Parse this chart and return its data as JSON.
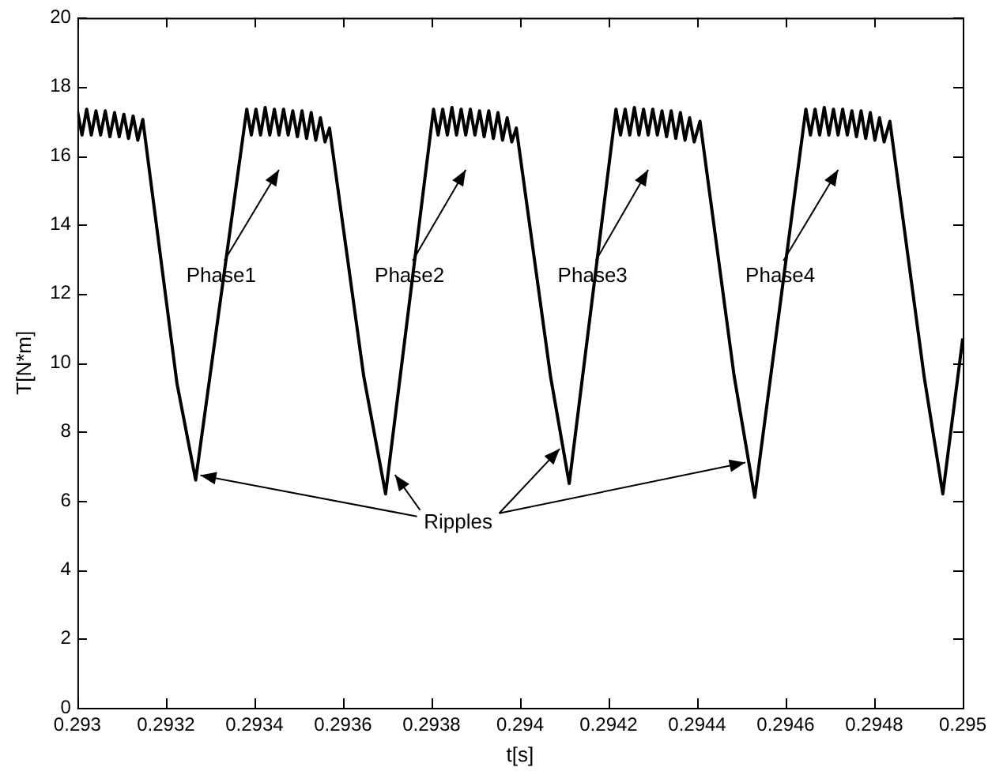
{
  "chart_data": {
    "type": "line",
    "xlabel": "t[s]",
    "ylabel": "T[N*m]",
    "xlim": [
      0.293,
      0.295
    ],
    "xticks": [
      0.293,
      0.2932,
      0.2934,
      0.2936,
      0.2938,
      0.294,
      0.2942,
      0.2944,
      0.2946,
      0.2948,
      0.295
    ],
    "ylim": [
      0,
      20
    ],
    "yticks": [
      0,
      2,
      4,
      6,
      8,
      10,
      12,
      14,
      16,
      18,
      20
    ],
    "grid": false,
    "legend": false,
    "marker": "none",
    "line_style": "solid",
    "annotations": [
      "Phase1",
      "Phase2",
      "Phase3",
      "Phase4",
      {
        "text": "Ripples",
        "x": 0.2932672,
        "y": 6.6
      }
    ],
    "series": [
      {
        "color": "#000000",
        "x": [
          0.293,
          0.2930105,
          0.293021,
          0.2930315,
          0.293042,
          0.2930525,
          0.293063,
          0.2930735,
          0.293084,
          0.2930945,
          0.293105,
          0.2931155,
          0.293126,
          0.2931365,
          0.2931477,
          0.293225,
          0.2932672,
          0.2933826,
          0.293393,
          0.2934034,
          0.2934138,
          0.2934242,
          0.2934346,
          0.293445,
          0.2934554,
          0.2934658,
          0.2934762,
          0.2934866,
          0.293497,
          0.2935074,
          0.2935178,
          0.2935282,
          0.2935386,
          0.293549,
          0.2935594,
          0.2935696,
          0.293647,
          0.2936962,
          0.2938045,
          0.2938149,
          0.2938253,
          0.2938357,
          0.2938461,
          0.2938565,
          0.2938669,
          0.2938773,
          0.2938877,
          0.2938981,
          0.2939085,
          0.2939189,
          0.2939293,
          0.2939397,
          0.2939501,
          0.2939605,
          0.2939709,
          0.2939813,
          0.2939916,
          0.2940689,
          0.2941111,
          0.2942166,
          0.294227,
          0.2942374,
          0.2942478,
          0.2942582,
          0.2942686,
          0.294279,
          0.2942894,
          0.2942998,
          0.2943102,
          0.2943206,
          0.294331,
          0.2943414,
          0.2943518,
          0.2943622,
          0.2943726,
          0.294383,
          0.2943934,
          0.2944065,
          0.2944838,
          0.2945302,
          0.2946456,
          0.294656,
          0.2946664,
          0.2946768,
          0.2946872,
          0.2946976,
          0.294708,
          0.2947184,
          0.2947288,
          0.2947392,
          0.2947496,
          0.29476,
          0.2947704,
          0.2947808,
          0.2947912,
          0.2948016,
          0.294812,
          0.2948224,
          0.2948354,
          0.2949128,
          0.294955,
          0.295
        ],
        "values": [
          17.3,
          16.6,
          17.35,
          16.6,
          17.3,
          16.6,
          17.3,
          16.55,
          17.25,
          16.55,
          17.2,
          16.5,
          17.15,
          16.45,
          17.05,
          9.4,
          6.6,
          17.35,
          16.6,
          17.35,
          16.6,
          17.4,
          16.6,
          17.35,
          16.6,
          17.35,
          16.6,
          17.3,
          16.55,
          17.3,
          16.5,
          17.25,
          16.45,
          17.1,
          16.4,
          16.8,
          9.6,
          6.2,
          17.35,
          16.6,
          17.35,
          16.6,
          17.4,
          16.6,
          17.35,
          16.6,
          17.35,
          16.6,
          17.3,
          16.55,
          17.3,
          16.5,
          17.25,
          16.45,
          17.1,
          16.4,
          16.8,
          9.6,
          6.5,
          17.35,
          16.6,
          17.35,
          16.6,
          17.4,
          16.6,
          17.35,
          16.6,
          17.35,
          16.6,
          17.3,
          16.55,
          17.3,
          16.5,
          17.25,
          16.45,
          17.1,
          16.4,
          17.0,
          9.6,
          6.1,
          17.35,
          16.6,
          17.35,
          16.6,
          17.4,
          16.6,
          17.35,
          16.6,
          17.35,
          16.6,
          17.3,
          16.55,
          17.3,
          16.5,
          17.25,
          16.45,
          17.1,
          16.4,
          17.0,
          9.6,
          6.2,
          10.7
        ]
      }
    ]
  }
}
